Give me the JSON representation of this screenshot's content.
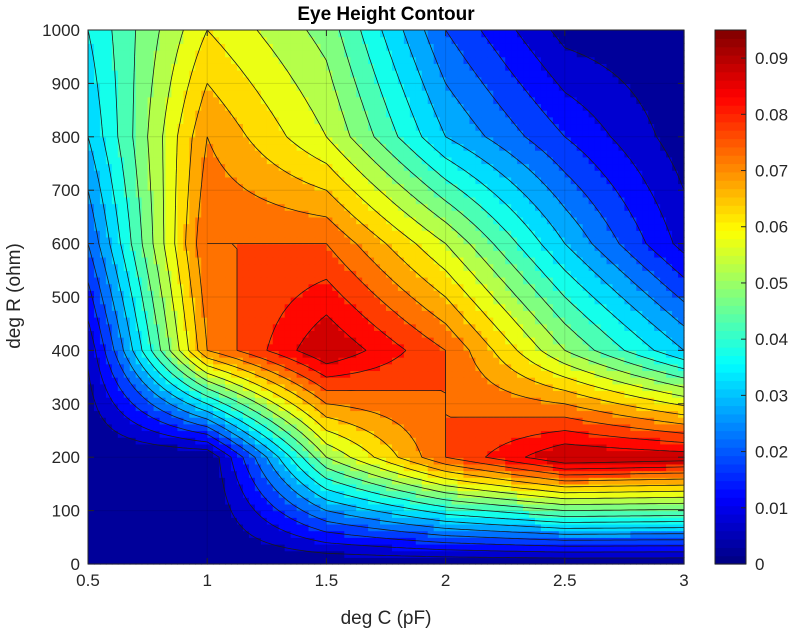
{
  "chart_data": {
    "type": "heatmap",
    "subtype": "filled-contour",
    "title": "Eye Height Contour",
    "xlabel": "deg C (pF)",
    "ylabel": "deg R (ohm)",
    "xlim": [
      0.5,
      3
    ],
    "ylim": [
      0,
      1000
    ],
    "x_ticks": [
      "0.5",
      "1",
      "1.5",
      "2",
      "2.5",
      "3"
    ],
    "y_ticks": [
      "0",
      "100",
      "200",
      "300",
      "400",
      "500",
      "600",
      "700",
      "800",
      "900",
      "1000"
    ],
    "colorbar": {
      "colormap": "jet",
      "range": [
        0,
        0.095
      ],
      "ticks": [
        "0",
        "0.01",
        "0.02",
        "0.03",
        "0.04",
        "0.05",
        "0.06",
        "0.07",
        "0.08",
        "0.09"
      ]
    },
    "x": [
      0.5,
      1.0,
      1.5,
      2.0,
      2.5,
      3.0
    ],
    "y": [
      0,
      200,
      400,
      600,
      800,
      1000
    ],
    "z": [
      [
        0.0,
        0.0,
        0.0,
        0.0,
        0.0,
        0.0
      ],
      [
        0.0,
        0.0,
        0.05,
        0.075,
        0.09,
        0.088
      ],
      [
        0.006,
        0.07,
        0.09,
        0.075,
        0.05,
        0.03
      ],
      [
        0.02,
        0.075,
        0.075,
        0.055,
        0.03,
        0.008
      ],
      [
        0.03,
        0.07,
        0.055,
        0.03,
        0.015,
        0.002
      ],
      [
        0.035,
        0.06,
        0.048,
        0.02,
        0.003,
        0.0
      ]
    ],
    "grid": true
  }
}
